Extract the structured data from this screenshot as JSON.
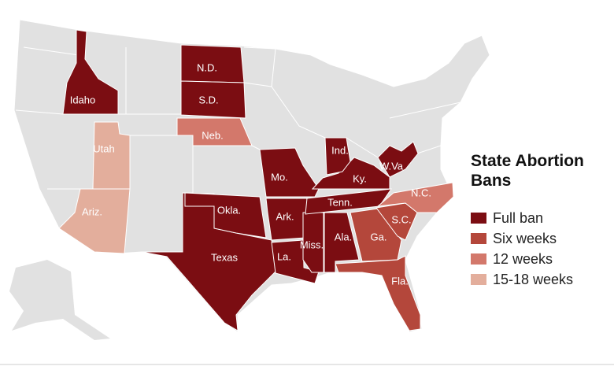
{
  "title": "State Abortion Bans",
  "legend": [
    {
      "label": "Full ban",
      "color": "#7b0d12"
    },
    {
      "label": "Six weeks",
      "color": "#b4473b"
    },
    {
      "label": "12 weeks",
      "color": "#d3786b"
    },
    {
      "label": "15-18 weeks",
      "color": "#e3ae9c"
    }
  ],
  "states": [
    {
      "label": "Idaho",
      "category": 0
    },
    {
      "label": "N.D.",
      "category": 0
    },
    {
      "label": "S.D.",
      "category": 0
    },
    {
      "label": "Neb.",
      "category": 2
    },
    {
      "label": "Utah",
      "category": 3
    },
    {
      "label": "Ariz.",
      "category": 3
    },
    {
      "label": "Texas",
      "category": 0
    },
    {
      "label": "Okla.",
      "category": 0
    },
    {
      "label": "Mo.",
      "category": 0
    },
    {
      "label": "Ark.",
      "category": 0
    },
    {
      "label": "La.",
      "category": 0
    },
    {
      "label": "Miss.",
      "category": 0
    },
    {
      "label": "Ala.",
      "category": 0
    },
    {
      "label": "Tenn.",
      "category": 0
    },
    {
      "label": "Ky.",
      "category": 0
    },
    {
      "label": "Ind.",
      "category": 0
    },
    {
      "label": "W.Va",
      "category": 0
    },
    {
      "label": "Ga.",
      "category": 1
    },
    {
      "label": "S.C.",
      "category": 1
    },
    {
      "label": "N.C.",
      "category": 2
    },
    {
      "label": "Fla.",
      "category": 1
    }
  ]
}
